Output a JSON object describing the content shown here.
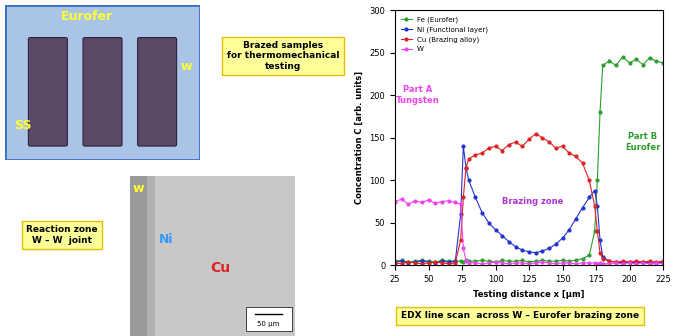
{
  "chart_data": {
    "type": "line",
    "xlabel": "Testing distance x [µm]",
    "ylabel": "Concentration C [arb. units]",
    "caption": "EDX line scan  across W – Eurofer brazing zone",
    "x": [
      25,
      30,
      35,
      40,
      45,
      50,
      55,
      60,
      65,
      70,
      74,
      76,
      78,
      80,
      85,
      90,
      95,
      100,
      105,
      110,
      115,
      120,
      125,
      130,
      135,
      140,
      145,
      150,
      155,
      160,
      165,
      170,
      174,
      176,
      178,
      180,
      185,
      190,
      195,
      200,
      205,
      210,
      215,
      220,
      225
    ],
    "series": [
      {
        "name": "Fe (Eurofer)",
        "color": "#2e9e2e",
        "marker": "o",
        "values": [
          5,
          6,
          4,
          5,
          6,
          5,
          4,
          6,
          5,
          5,
          5,
          4,
          6,
          5,
          5,
          6,
          5,
          4,
          6,
          5,
          5,
          6,
          4,
          5,
          6,
          5,
          5,
          6,
          5,
          6,
          8,
          12,
          40,
          100,
          180,
          235,
          240,
          235,
          245,
          238,
          242,
          236,
          244,
          240,
          238
        ]
      },
      {
        "name": "Ni (Functional layer)",
        "color": "#2233cc",
        "marker": "o",
        "values": [
          4,
          5,
          3,
          4,
          5,
          4,
          3,
          5,
          4,
          5,
          60,
          140,
          115,
          100,
          80,
          62,
          50,
          42,
          35,
          28,
          22,
          18,
          16,
          15,
          17,
          20,
          25,
          32,
          42,
          55,
          68,
          80,
          88,
          70,
          30,
          10,
          5,
          4,
          3,
          4,
          3,
          4,
          3,
          3,
          4
        ]
      },
      {
        "name": "Cu (Brazing alloy)",
        "color": "#dd2222",
        "marker": "o",
        "values": [
          3,
          2,
          4,
          3,
          2,
          3,
          4,
          3,
          2,
          3,
          30,
          80,
          115,
          125,
          130,
          132,
          138,
          140,
          135,
          142,
          145,
          140,
          148,
          155,
          150,
          145,
          138,
          140,
          132,
          128,
          120,
          100,
          70,
          40,
          15,
          8,
          5,
          4,
          5,
          4,
          5,
          4,
          5,
          4,
          5
        ]
      },
      {
        "name": "W",
        "color": "#ee44ee",
        "marker": "o",
        "values": [
          75,
          78,
          72,
          76,
          74,
          77,
          73,
          75,
          76,
          74,
          72,
          20,
          5,
          3,
          3,
          2,
          3,
          4,
          3,
          2,
          3,
          3,
          2,
          3,
          4,
          3,
          2,
          3,
          3,
          2,
          3,
          3,
          3,
          2,
          3,
          2,
          2,
          3,
          2,
          3,
          2,
          3,
          2,
          3,
          2
        ]
      }
    ],
    "xlim": [
      25,
      225
    ],
    "xticks": [
      25,
      50,
      75,
      100,
      125,
      150,
      175,
      200,
      225
    ],
    "ylim": [
      0,
      300
    ],
    "yticks": [
      0,
      50,
      100,
      150,
      200,
      250,
      300
    ],
    "legend": "upper left",
    "annotations": [
      {
        "text": "Part A\nTungsten",
        "color": "#ee44ee"
      },
      {
        "text": "Brazing zone",
        "color": "#aa33cc"
      },
      {
        "text": "Part B\nEurofer",
        "color": "#2e9e2e"
      }
    ]
  },
  "photo": {
    "labels": [
      "Eurofer",
      "w",
      "SS"
    ],
    "caption": "Brazed samples\nfor thermomechanical\ntesting"
  },
  "micrograph": {
    "labels": [
      "w",
      "Ni",
      "Cu"
    ],
    "scale_bar": "50 µm",
    "caption": "Reaction zone\nW – W  joint"
  }
}
